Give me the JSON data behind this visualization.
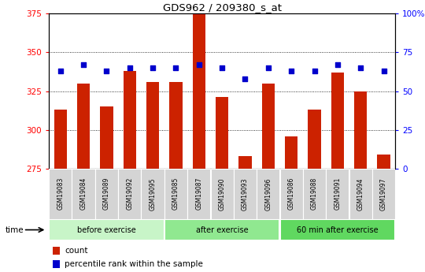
{
  "title": "GDS962 / 209380_s_at",
  "samples": [
    "GSM19083",
    "GSM19084",
    "GSM19089",
    "GSM19092",
    "GSM19095",
    "GSM19085",
    "GSM19087",
    "GSM19090",
    "GSM19093",
    "GSM19096",
    "GSM19086",
    "GSM19088",
    "GSM19091",
    "GSM19094",
    "GSM19097"
  ],
  "counts": [
    313,
    330,
    315,
    338,
    331,
    331,
    375,
    321,
    283,
    330,
    296,
    313,
    337,
    325,
    284
  ],
  "percentile_ranks": [
    63,
    67,
    63,
    65,
    65,
    65,
    67,
    65,
    58,
    65,
    63,
    63,
    67,
    65,
    63
  ],
  "groups": [
    {
      "label": "before exercise",
      "start": 0,
      "end": 5,
      "color": "#c8f5c8"
    },
    {
      "label": "after exercise",
      "start": 5,
      "end": 10,
      "color": "#90e890"
    },
    {
      "label": "60 min after exercise",
      "start": 10,
      "end": 15,
      "color": "#60d860"
    }
  ],
  "ylim_left": [
    275,
    375
  ],
  "ylim_right": [
    0,
    100
  ],
  "yticks_left": [
    275,
    300,
    325,
    350,
    375
  ],
  "yticks_right": [
    0,
    25,
    50,
    75,
    100
  ],
  "ytick_labels_right": [
    "0",
    "25",
    "50",
    "75",
    "100%"
  ],
  "bar_color": "#cc2200",
  "dot_color": "#0000cc",
  "bar_width": 0.55,
  "plot_bg_color": "#ffffff",
  "legend_items": [
    "count",
    "percentile rank within the sample"
  ],
  "legend_colors": [
    "#cc2200",
    "#0000cc"
  ],
  "label_bg": "#d4d4d4"
}
